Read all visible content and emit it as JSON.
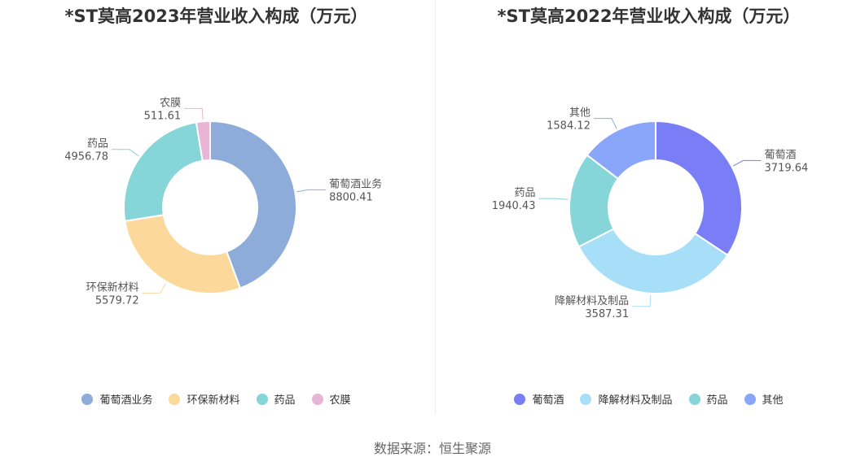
{
  "chart_data": [
    {
      "type": "pie",
      "title": "*ST莫高2023年营业收入构成（万元）",
      "slices": [
        {
          "name": "葡萄酒业务",
          "value": 8800.41,
          "label": "8800.41",
          "color": "#8eacd9"
        },
        {
          "name": "环保新材料",
          "value": 5579.72,
          "label": "5579.72",
          "color": "#fdd89b"
        },
        {
          "name": "药品",
          "value": 4956.78,
          "label": "4956.78",
          "color": "#86d5d8"
        },
        {
          "name": "农膜",
          "value": 511.61,
          "label": "511.61",
          "color": "#e9b5d7"
        }
      ],
      "legend_position": "bottom"
    },
    {
      "type": "pie",
      "title": "*ST莫高2022年营业收入构成（万元）",
      "slices": [
        {
          "name": "葡萄酒",
          "value": 3719.64,
          "label": "3719.64",
          "color": "#7a7ef6"
        },
        {
          "name": "降解材料及制品",
          "value": 3587.31,
          "label": "3587.31",
          "color": "#a8dff8"
        },
        {
          "name": "药品",
          "value": 1940.43,
          "label": "1940.43",
          "color": "#86d5d8"
        },
        {
          "name": "其他",
          "value": 1584.12,
          "label": "1584.12",
          "color": "#8aa6fb"
        }
      ],
      "legend_position": "bottom"
    }
  ],
  "source": "数据来源：恒生聚源"
}
